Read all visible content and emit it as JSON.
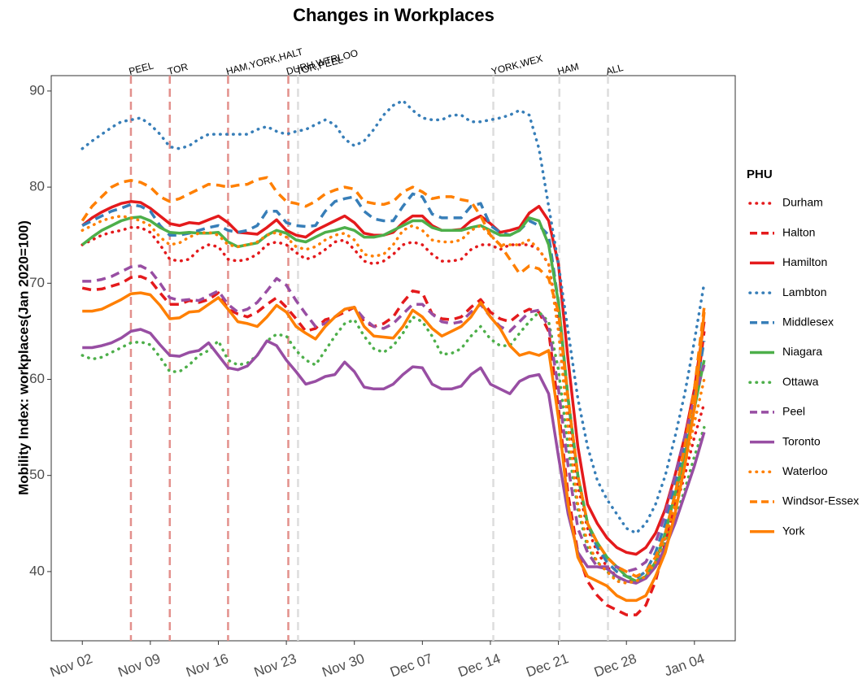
{
  "chart_data": {
    "type": "line",
    "title": "Changes in Workplaces",
    "y_label": "Mobility Index: workplaces(Jan 2020=100)",
    "legend_title": "PHU",
    "legend_position": "right",
    "grid": false,
    "xlim": [
      -3.2,
      67.2
    ],
    "ylim": [
      32.8,
      91.6
    ],
    "yticks": [
      40,
      50,
      60,
      70,
      80,
      90
    ],
    "xticks": [
      {
        "value": 0,
        "label": "Nov 02"
      },
      {
        "value": 7,
        "label": "Nov 09"
      },
      {
        "value": 14,
        "label": "Nov 16"
      },
      {
        "value": 21,
        "label": "Nov 23"
      },
      {
        "value": 28,
        "label": "Nov 30"
      },
      {
        "value": 35,
        "label": "Dec 07"
      },
      {
        "value": 42,
        "label": "Dec 14"
      },
      {
        "value": 49,
        "label": "Dec 21"
      },
      {
        "value": 56,
        "label": "Dec 28"
      },
      {
        "value": 63,
        "label": "Jan 04"
      }
    ],
    "events": [
      {
        "x": 5,
        "label": "PEEL",
        "line_color": "#e3908c",
        "label_color": "#c83a32"
      },
      {
        "x": 9,
        "label": "TOR",
        "line_color": "#e3908c",
        "label_color": "#c83a32"
      },
      {
        "x": 15,
        "label": "HAM,YORK,HALT",
        "line_color": "#e3908c",
        "label_color": "#c83a32"
      },
      {
        "x": 21.2,
        "label": "DURH,WTRLOO",
        "line_color": "#e3908c",
        "label_color": "#c83a32"
      },
      {
        "x": 22.2,
        "label": "TOR,PEEL",
        "line_color": "#dddddd",
        "label_color": "#000000"
      },
      {
        "x": 42.3,
        "label": "YORK,WEX",
        "line_color": "#dddddd",
        "label_color": "#000000"
      },
      {
        "x": 49.1,
        "label": "HAM",
        "line_color": "#dddddd",
        "label_color": "#000000"
      },
      {
        "x": 54.1,
        "label": "ALL",
        "line_color": "#dddddd",
        "label_color": "#000000"
      }
    ],
    "x": [
      0,
      1,
      2,
      3,
      4,
      5,
      6,
      7,
      8,
      9,
      10,
      11,
      12,
      13,
      14,
      15,
      16,
      17,
      18,
      19,
      20,
      21,
      22,
      23,
      24,
      25,
      26,
      27,
      28,
      29,
      30,
      31,
      32,
      33,
      34,
      35,
      36,
      37,
      38,
      39,
      40,
      41,
      42,
      43,
      44,
      45,
      46,
      47,
      48,
      49,
      50,
      51,
      52,
      53,
      54,
      55,
      56,
      57,
      58,
      59,
      60,
      61,
      62,
      63,
      64
    ],
    "series": [
      {
        "name": "Durham",
        "color": "#e41a1c",
        "linestyle": "dotted",
        "values": [
          74.0,
          74.5,
          75.0,
          75.3,
          75.5,
          75.8,
          75.8,
          75.3,
          74.0,
          72.5,
          72.3,
          72.5,
          73.5,
          74.0,
          73.8,
          72.5,
          72.3,
          72.5,
          73.0,
          74.0,
          74.3,
          74.0,
          73.2,
          72.5,
          72.8,
          73.5,
          74.3,
          74.5,
          73.5,
          72.3,
          72.0,
          72.3,
          73.0,
          74.0,
          74.3,
          74.0,
          73.0,
          72.3,
          72.3,
          72.5,
          73.5,
          74.0,
          74.0,
          73.5,
          74.0,
          74.0,
          74.0,
          73.5,
          72.0,
          66.0,
          57.0,
          49.0,
          44.5,
          42.0,
          40.5,
          39.5,
          39.0,
          39.0,
          39.5,
          41.0,
          43.5,
          46.5,
          50.0,
          54.0,
          57.5
        ]
      },
      {
        "name": "Halton",
        "color": "#e41a1c",
        "linestyle": "dashed",
        "values": [
          69.5,
          69.3,
          69.4,
          69.7,
          70.0,
          70.6,
          70.7,
          70.3,
          69.0,
          67.8,
          67.8,
          68.2,
          68.0,
          68.3,
          69.0,
          67.3,
          66.8,
          66.5,
          67.0,
          67.8,
          68.5,
          67.5,
          66.3,
          65.0,
          65.3,
          66.2,
          66.5,
          67.0,
          67.5,
          66.0,
          65.5,
          65.8,
          66.5,
          68.0,
          69.2,
          69.0,
          66.8,
          66.3,
          66.2,
          66.5,
          67.5,
          68.3,
          67.0,
          66.3,
          66.0,
          66.8,
          67.3,
          67.0,
          65.0,
          57.0,
          48.0,
          42.0,
          39.0,
          37.5,
          36.5,
          36.0,
          35.5,
          35.5,
          36.5,
          39.0,
          43.0,
          47.0,
          52.0,
          57.0,
          65.0
        ]
      },
      {
        "name": "Hamilton",
        "color": "#e41a1c",
        "linestyle": "solid",
        "values": [
          76.0,
          76.8,
          77.4,
          77.9,
          78.3,
          78.5,
          78.4,
          77.8,
          77.0,
          76.2,
          76.0,
          76.3,
          76.2,
          76.6,
          77.0,
          76.3,
          75.3,
          75.2,
          75.1,
          75.8,
          76.6,
          75.5,
          75.0,
          74.8,
          75.5,
          76.0,
          76.5,
          77.0,
          76.3,
          75.2,
          75.0,
          75.0,
          75.3,
          76.3,
          77.0,
          77.0,
          76.0,
          75.5,
          75.5,
          75.6,
          76.5,
          77.0,
          76.2,
          75.3,
          75.5,
          75.8,
          77.3,
          78.0,
          76.5,
          72.0,
          62.0,
          53.0,
          47.0,
          45.0,
          43.5,
          42.5,
          42.0,
          41.8,
          42.5,
          44.0,
          46.5,
          50.0,
          54.0,
          59.0,
          66.0
        ]
      },
      {
        "name": "Lambton",
        "color": "#377eb8",
        "linestyle": "dotted",
        "values": [
          84.0,
          84.8,
          85.5,
          86.2,
          86.8,
          87.0,
          87.2,
          86.5,
          85.5,
          84.2,
          84.0,
          84.3,
          85.0,
          85.5,
          85.5,
          85.5,
          85.5,
          85.5,
          86.0,
          86.3,
          85.8,
          85.5,
          85.8,
          86.0,
          86.5,
          87.0,
          86.5,
          85.0,
          84.3,
          84.8,
          86.0,
          87.5,
          88.5,
          89.0,
          88.0,
          87.2,
          87.0,
          87.0,
          87.5,
          87.5,
          86.8,
          86.8,
          87.0,
          87.2,
          87.5,
          88.0,
          87.5,
          84.0,
          78.0,
          72.0,
          65.0,
          58.0,
          53.0,
          49.5,
          47.5,
          46.0,
          44.5,
          44.0,
          45.0,
          47.0,
          50.0,
          54.0,
          58.5,
          64.0,
          70.0
        ]
      },
      {
        "name": "Middlesex",
        "color": "#377eb8",
        "linestyle": "dashed",
        "values": [
          76.0,
          76.5,
          77.0,
          77.5,
          77.8,
          78.2,
          78.0,
          77.5,
          76.0,
          75.0,
          75.0,
          75.2,
          75.5,
          75.8,
          76.0,
          75.5,
          75.3,
          75.5,
          76.0,
          77.5,
          77.5,
          76.3,
          76.0,
          75.9,
          76.0,
          77.5,
          78.5,
          78.8,
          79.0,
          77.5,
          76.7,
          76.5,
          76.5,
          78.0,
          79.3,
          79.0,
          77.2,
          76.8,
          76.8,
          76.8,
          78.0,
          78.3,
          76.0,
          75.3,
          75.0,
          75.5,
          76.5,
          76.0,
          75.0,
          68.0,
          58.0,
          50.0,
          45.0,
          42.5,
          41.0,
          40.0,
          39.5,
          39.3,
          40.0,
          42.0,
          45.0,
          49.0,
          53.0,
          58.0,
          64.0
        ]
      },
      {
        "name": "Niagara",
        "color": "#4daf4a",
        "linestyle": "solid",
        "values": [
          74.0,
          74.8,
          75.5,
          76.0,
          76.5,
          76.8,
          76.9,
          76.5,
          75.8,
          75.3,
          75.2,
          75.3,
          75.2,
          75.2,
          75.3,
          74.3,
          73.8,
          74.0,
          74.2,
          75.0,
          75.5,
          75.2,
          74.5,
          74.3,
          74.8,
          75.3,
          75.5,
          75.8,
          75.5,
          74.8,
          74.8,
          75.0,
          75.5,
          76.0,
          76.5,
          76.5,
          75.8,
          75.5,
          75.5,
          75.5,
          75.8,
          76.0,
          75.5,
          75.0,
          75.0,
          75.5,
          76.8,
          76.5,
          74.0,
          68.0,
          58.0,
          50.0,
          45.0,
          43.0,
          41.5,
          40.5,
          39.5,
          39.0,
          39.5,
          41.0,
          44.0,
          48.0,
          52.0,
          57.0,
          62.0
        ]
      },
      {
        "name": "Ottawa",
        "color": "#4daf4a",
        "linestyle": "dotted",
        "values": [
          62.5,
          62.1,
          62.3,
          62.8,
          63.3,
          63.8,
          63.9,
          63.6,
          62.3,
          60.8,
          60.8,
          61.5,
          62.5,
          63.0,
          64.0,
          62.0,
          61.5,
          61.7,
          62.5,
          64.0,
          64.7,
          64.5,
          63.0,
          62.0,
          61.5,
          63.0,
          64.5,
          65.8,
          66.2,
          64.5,
          63.2,
          62.8,
          63.5,
          64.8,
          66.5,
          66.0,
          64.5,
          62.6,
          62.7,
          63.2,
          64.5,
          65.5,
          64.2,
          63.5,
          63.5,
          64.8,
          66.0,
          67.0,
          66.0,
          61.0,
          53.0,
          46.5,
          42.5,
          41.0,
          40.0,
          39.3,
          39.0,
          39.0,
          39.5,
          41.0,
          43.0,
          45.5,
          48.5,
          52.0,
          55.0
        ]
      },
      {
        "name": "Peel",
        "color": "#984ea3",
        "linestyle": "dashed",
        "values": [
          70.2,
          70.2,
          70.4,
          70.7,
          71.2,
          71.7,
          71.8,
          71.3,
          70.0,
          68.5,
          68.2,
          68.3,
          68.2,
          68.7,
          69.2,
          67.8,
          67.0,
          67.3,
          68.0,
          69.2,
          70.5,
          69.8,
          68.2,
          66.8,
          65.5,
          65.8,
          66.5,
          67.3,
          67.5,
          66.3,
          65.5,
          65.3,
          65.8,
          66.8,
          67.8,
          67.8,
          66.8,
          66.0,
          65.8,
          66.0,
          67.0,
          67.8,
          66.5,
          65.5,
          65.0,
          66.0,
          67.0,
          67.2,
          65.5,
          59.0,
          51.0,
          44.5,
          42.0,
          40.5,
          40.5,
          40.5,
          40.0,
          40.3,
          41.0,
          43.0,
          46.0,
          50.0,
          54.0,
          58.0,
          61.5
        ]
      },
      {
        "name": "Toronto",
        "color": "#984ea3",
        "linestyle": "solid",
        "values": [
          63.3,
          63.3,
          63.5,
          63.8,
          64.3,
          65.0,
          65.2,
          64.8,
          63.6,
          62.5,
          62.4,
          62.8,
          63.0,
          63.8,
          62.5,
          61.2,
          61.0,
          61.4,
          62.5,
          64.0,
          63.5,
          62.0,
          60.8,
          59.5,
          59.8,
          60.3,
          60.5,
          61.8,
          60.8,
          59.2,
          59.0,
          59.0,
          59.5,
          60.5,
          61.3,
          61.2,
          59.5,
          59.0,
          59.0,
          59.3,
          60.5,
          61.2,
          59.5,
          59.0,
          58.5,
          59.8,
          60.3,
          60.5,
          58.5,
          52.0,
          46.0,
          42.0,
          40.5,
          40.5,
          40.3,
          39.5,
          39.0,
          38.8,
          39.3,
          40.5,
          42.5,
          45.0,
          48.0,
          51.0,
          54.5
        ]
      },
      {
        "name": "Waterloo",
        "color": "#ff7f00",
        "linestyle": "dotted",
        "values": [
          75.5,
          76.0,
          76.5,
          76.8,
          77.0,
          76.8,
          76.5,
          76.0,
          74.8,
          74.0,
          74.2,
          74.8,
          75.2,
          75.3,
          75.0,
          74.0,
          73.8,
          74.0,
          74.3,
          75.0,
          75.3,
          74.8,
          73.8,
          73.5,
          73.8,
          74.5,
          75.0,
          75.2,
          74.5,
          73.0,
          72.8,
          73.0,
          74.0,
          75.5,
          76.0,
          75.5,
          74.5,
          74.3,
          74.3,
          74.5,
          75.5,
          76.0,
          75.0,
          74.0,
          74.0,
          74.0,
          74.5,
          73.5,
          72.0,
          65.0,
          55.0,
          47.0,
          43.0,
          41.0,
          40.0,
          39.0,
          38.8,
          39.0,
          39.5,
          41.0,
          43.5,
          47.0,
          51.0,
          55.5,
          60.0
        ]
      },
      {
        "name": "Windsor-Essex",
        "color": "#ff7f00",
        "linestyle": "dashed",
        "values": [
          76.5,
          78.0,
          79.0,
          80.0,
          80.5,
          80.7,
          80.5,
          80.0,
          79.0,
          78.5,
          78.8,
          79.3,
          79.8,
          80.3,
          80.2,
          80.0,
          80.2,
          80.3,
          80.8,
          81.0,
          79.5,
          78.5,
          78.3,
          78.0,
          78.5,
          79.3,
          79.7,
          80.0,
          79.8,
          78.5,
          78.3,
          78.2,
          78.5,
          79.5,
          80.0,
          79.5,
          78.8,
          79.0,
          79.0,
          78.7,
          78.5,
          77.0,
          75.0,
          74.0,
          72.5,
          71.0,
          71.8,
          71.5,
          70.5,
          67.0,
          58.0,
          50.0,
          45.0,
          43.0,
          41.5,
          40.5,
          40.0,
          39.5,
          40.0,
          41.5,
          44.0,
          48.0,
          53.0,
          59.0,
          67.5
        ]
      },
      {
        "name": "York",
        "color": "#ff7f00",
        "linestyle": "solid",
        "values": [
          67.1,
          67.1,
          67.3,
          67.8,
          68.3,
          68.9,
          69.0,
          68.8,
          67.7,
          66.3,
          66.4,
          67.0,
          67.1,
          67.8,
          68.5,
          67.3,
          66.0,
          65.8,
          65.5,
          66.5,
          67.7,
          67.0,
          65.5,
          64.8,
          64.2,
          65.5,
          66.5,
          67.3,
          67.5,
          65.5,
          64.5,
          64.4,
          64.3,
          65.5,
          67.2,
          66.5,
          65.3,
          64.5,
          65.0,
          65.5,
          66.5,
          68.0,
          66.5,
          65.3,
          63.5,
          62.5,
          62.8,
          62.5,
          63.0,
          56.0,
          47.0,
          41.5,
          39.5,
          39.0,
          38.5,
          37.5,
          37.0,
          37.0,
          37.5,
          39.5,
          42.0,
          46.0,
          51.0,
          57.0,
          67.0
        ]
      }
    ]
  }
}
